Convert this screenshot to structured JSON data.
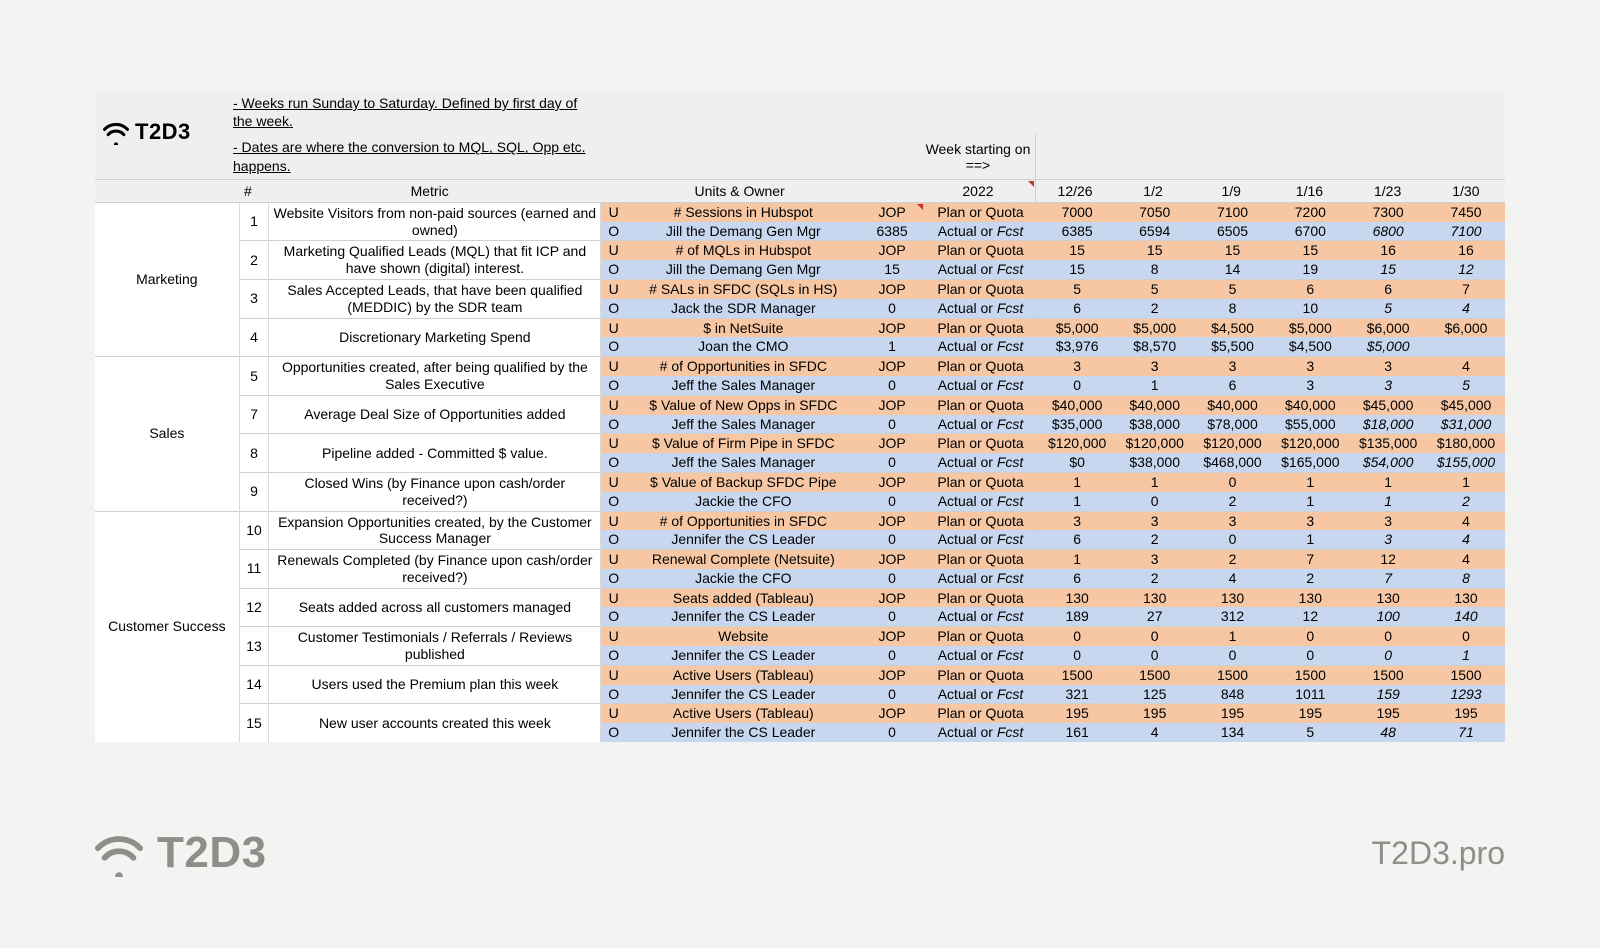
{
  "brand": {
    "name": "T2D3",
    "url": "T2D3.pro"
  },
  "notes": {
    "line1": "- Weeks run Sunday to Saturday. Defined by first day of the week.",
    "line2": "- Dates are where the conversion to MQL, SQL, Opp etc. happens."
  },
  "weekline": "Week starting on ==>",
  "columns": {
    "hash": "#",
    "metric": "Metric",
    "units": "Units & Owner",
    "year": "2022",
    "dates": [
      "12/26",
      "1/2",
      "1/9",
      "1/16",
      "1/23",
      "1/30"
    ]
  },
  "rowTypes": {
    "plan": "Plan or Quota",
    "actual": "Actual or Fcst"
  },
  "uoLabels": {
    "u": "U",
    "o": "O"
  },
  "jopLabels": {
    "u": "JOP"
  },
  "categories": [
    {
      "name": "Marketing",
      "rowSpan": 8
    },
    {
      "name": "Sales",
      "rowSpan": 8
    },
    {
      "name": "Customer Success",
      "rowSpan": 12
    }
  ],
  "colors": {
    "rowU": "#f7c7a3",
    "rowO": "#c7d7ef",
    "greyBand": "#efefef",
    "border": "#d0d0d0",
    "pageBg": "#f3f4f1"
  },
  "metrics": [
    {
      "num": "1",
      "cat": 0,
      "metric": "Website Visitors from non-paid sources (earned and owned)",
      "u_owner": "# Sessions in Hubspot",
      "o_owner": "Jill the Demang Gen Mgr",
      "o_year": "6385",
      "u_vals": [
        "7000",
        "7050",
        "7100",
        "7200",
        "7300",
        "7450"
      ],
      "o_vals": [
        "6385",
        "6594",
        "6505",
        "6700",
        "6800",
        "7100"
      ],
      "o_fcst_from": 4
    },
    {
      "num": "2",
      "cat": 0,
      "metric": "Marketing Qualified Leads (MQL) that fit ICP and have shown (digital) interest.",
      "u_owner": "# of MQLs in Hubspot",
      "o_owner": "Jill the Demang Gen Mgr",
      "o_year": "15",
      "u_vals": [
        "15",
        "15",
        "15",
        "15",
        "16",
        "16"
      ],
      "o_vals": [
        "15",
        "8",
        "14",
        "19",
        "15",
        "12"
      ],
      "o_fcst_from": 4
    },
    {
      "num": "3",
      "cat": 0,
      "metric": "Sales Accepted Leads, that have been qualified (MEDDIC) by the SDR team",
      "u_owner": "# SALs in SFDC (SQLs in HS)",
      "o_owner": "Jack the SDR Manager",
      "o_year": "0",
      "u_vals": [
        "5",
        "5",
        "5",
        "6",
        "6",
        "7"
      ],
      "o_vals": [
        "6",
        "2",
        "8",
        "10",
        "5",
        "4"
      ],
      "o_fcst_from": 4
    },
    {
      "num": "4",
      "cat": 0,
      "metric": "Discretionary Marketing Spend",
      "u_owner": "$ in NetSuite",
      "o_owner": "Joan the CMO",
      "o_year": "1",
      "u_vals": [
        "$5,000",
        "$5,000",
        "$4,500",
        "$5,000",
        "$6,000",
        "$6,000"
      ],
      "o_vals": [
        "$3,976",
        "$8,570",
        "$5,500",
        "$4,500",
        "$5,000",
        ""
      ],
      "o_fcst_from": 4
    },
    {
      "num": "5",
      "cat": 1,
      "metric": "Opportunities created, after being qualified by the Sales Executive",
      "u_owner": "# of Opportunities in SFDC",
      "o_owner": "Jeff the Sales Manager",
      "o_year": "0",
      "u_vals": [
        "3",
        "3",
        "3",
        "3",
        "3",
        "4"
      ],
      "o_vals": [
        "0",
        "1",
        "6",
        "3",
        "3",
        "5"
      ],
      "o_fcst_from": 4
    },
    {
      "num": "7",
      "cat": 1,
      "metric": "Average Deal Size of Opportunities added",
      "u_owner": "$ Value of New Opps in SFDC",
      "o_owner": "Jeff the Sales Manager",
      "o_year": "0",
      "u_vals": [
        "$40,000",
        "$40,000",
        "$40,000",
        "$40,000",
        "$45,000",
        "$45,000"
      ],
      "o_vals": [
        "$35,000",
        "$38,000",
        "$78,000",
        "$55,000",
        "$18,000",
        "$31,000"
      ],
      "o_fcst_from": 4
    },
    {
      "num": "8",
      "cat": 1,
      "metric": "Pipeline added - Committed $ value.",
      "u_owner": "$ Value of Firm Pipe in SFDC",
      "o_owner": "Jeff the Sales Manager",
      "o_year": "0",
      "u_vals": [
        "$120,000",
        "$120,000",
        "$120,000",
        "$120,000",
        "$135,000",
        "$180,000"
      ],
      "o_vals": [
        "$0",
        "$38,000",
        "$468,000",
        "$165,000",
        "$54,000",
        "$155,000"
      ],
      "o_fcst_from": 4
    },
    {
      "num": "9",
      "cat": 1,
      "metric": "Closed Wins (by Finance upon cash/order received?)",
      "u_owner": "$ Value of Backup SFDC Pipe",
      "o_owner": "Jackie the CFO",
      "o_year": "0",
      "u_vals": [
        "1",
        "1",
        "0",
        "1",
        "1",
        "1"
      ],
      "o_vals": [
        "1",
        "0",
        "2",
        "1",
        "1",
        "2"
      ],
      "o_fcst_from": 4
    },
    {
      "num": "10",
      "cat": 2,
      "metric": "Expansion Opportunities created, by the Customer Success Manager",
      "u_owner": "# of Opportunities in SFDC",
      "o_owner": "Jennifer the CS Leader",
      "o_year": "0",
      "u_vals": [
        "3",
        "3",
        "3",
        "3",
        "3",
        "4"
      ],
      "o_vals": [
        "6",
        "2",
        "0",
        "1",
        "3",
        "4"
      ],
      "o_fcst_from": 4
    },
    {
      "num": "11",
      "cat": 2,
      "metric": "Renewals Completed (by Finance upon cash/order received?)",
      "u_owner": "Renewal Complete (Netsuite)",
      "o_owner": "Jackie the CFO",
      "o_year": "0",
      "u_vals": [
        "1",
        "3",
        "2",
        "7",
        "12",
        "4"
      ],
      "o_vals": [
        "6",
        "2",
        "4",
        "2",
        "7",
        "8"
      ],
      "o_fcst_from": 4
    },
    {
      "num": "12",
      "cat": 2,
      "metric": "Seats added across all customers managed",
      "u_owner": "Seats added (Tableau)",
      "o_owner": "Jennifer the CS Leader",
      "o_year": "0",
      "u_vals": [
        "130",
        "130",
        "130",
        "130",
        "130",
        "130"
      ],
      "o_vals": [
        "189",
        "27",
        "312",
        "12",
        "100",
        "140"
      ],
      "o_fcst_from": 4
    },
    {
      "num": "13",
      "cat": 2,
      "metric": "Customer Testimonials / Referrals / Reviews published",
      "u_owner": "Website",
      "o_owner": "Jennifer the CS Leader",
      "o_year": "0",
      "u_vals": [
        "0",
        "0",
        "1",
        "0",
        "0",
        "0"
      ],
      "o_vals": [
        "0",
        "0",
        "0",
        "0",
        "0",
        "1"
      ],
      "o_fcst_from": 4
    },
    {
      "num": "14",
      "cat": 2,
      "metric": "Users used the Premium plan this week",
      "u_owner": "Active Users (Tableau)",
      "o_owner": "Jennifer the CS Leader",
      "o_year": "0",
      "u_vals": [
        "1500",
        "1500",
        "1500",
        "1500",
        "1500",
        "1500"
      ],
      "o_vals": [
        "321",
        "125",
        "848",
        "1011",
        "159",
        "1293"
      ],
      "o_fcst_from": 4
    },
    {
      "num": "15",
      "cat": 2,
      "metric": "New user accounts created this week",
      "u_owner": "Active Users (Tableau)",
      "o_owner": "Jennifer the CS Leader",
      "o_year": "0",
      "u_vals": [
        "195",
        "195",
        "195",
        "195",
        "195",
        "195"
      ],
      "o_vals": [
        "161",
        "4",
        "134",
        "5",
        "48",
        "71"
      ],
      "o_fcst_from": 4
    }
  ]
}
